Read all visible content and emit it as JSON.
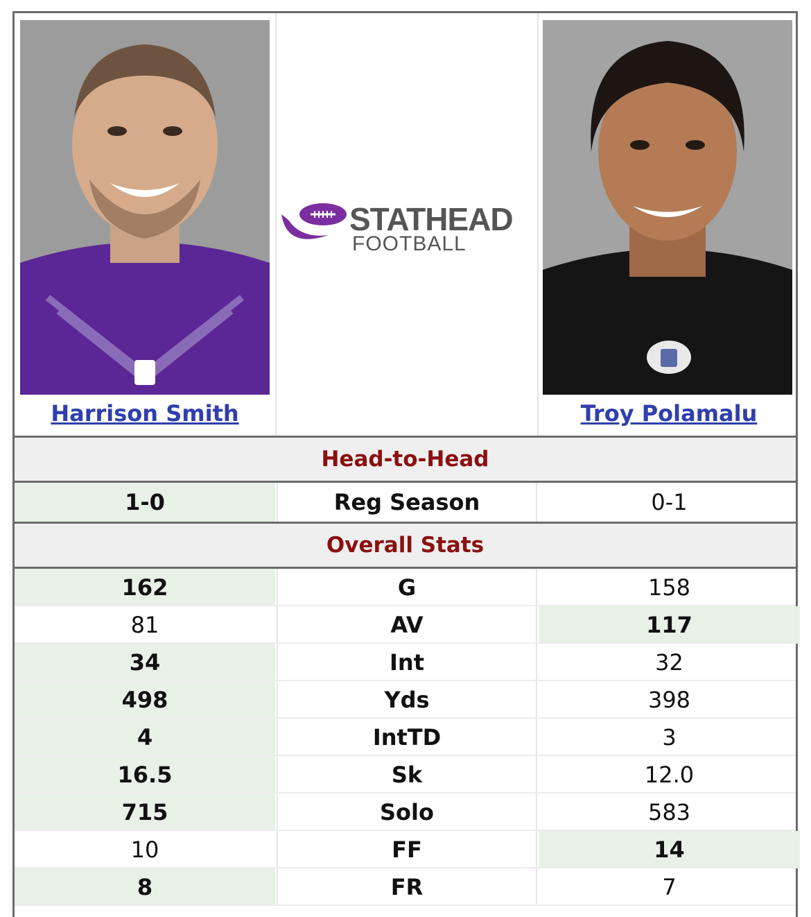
{
  "players": {
    "left": {
      "name": "Harrison Smith",
      "jersey_color": "#5b2796"
    },
    "right": {
      "name": "Troy Polamalu",
      "jersey_color": "#151515"
    }
  },
  "logo": {
    "line1": "STATHEAD",
    "line2": "FOOTBALL",
    "accent": "#7b2ea0"
  },
  "head_to_head": {
    "title": "Head-to-Head",
    "row": {
      "label": "Reg Season",
      "left": "1-0",
      "right": "0-1",
      "winner": "left"
    }
  },
  "overall": {
    "title": "Overall Stats",
    "rows": [
      {
        "label": "G",
        "left": "162",
        "right": "158",
        "winner": "left"
      },
      {
        "label": "AV",
        "left": "81",
        "right": "117",
        "winner": "right"
      },
      {
        "label": "Int",
        "left": "34",
        "right": "32",
        "winner": "left"
      },
      {
        "label": "Yds",
        "left": "498",
        "right": "398",
        "winner": "left"
      },
      {
        "label": "IntTD",
        "left": "4",
        "right": "3",
        "winner": "left"
      },
      {
        "label": "Sk",
        "left": "16.5",
        "right": "12.0",
        "winner": "left"
      },
      {
        "label": "Solo",
        "left": "715",
        "right": "583",
        "winner": "left"
      },
      {
        "label": "FF",
        "left": "10",
        "right": "14",
        "winner": "right"
      },
      {
        "label": "FR",
        "left": "8",
        "right": "7",
        "winner": "left"
      }
    ]
  },
  "colors": {
    "win_bg": "#e7f1e6",
    "section_text": "#8b1010",
    "link": "#2f3fae"
  }
}
